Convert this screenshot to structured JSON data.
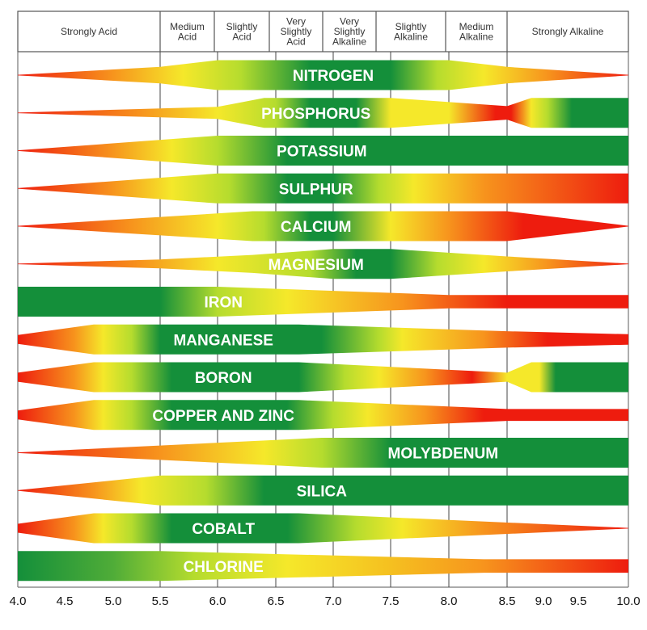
{
  "chart_data": {
    "type": "area",
    "title": "",
    "xlabel": "",
    "ylabel": "",
    "xlim": [
      4.0,
      10.0
    ],
    "x_ticks": [
      "4.0",
      "4.5",
      "5.0",
      "5.5",
      "6.0",
      "6.5",
      "7.0",
      "7.5",
      "8.0",
      "8.5",
      "9.0",
      "9.5",
      "10.0"
    ],
    "x_tick_values": [
      4.0,
      4.5,
      5.0,
      5.5,
      6.0,
      6.5,
      7.0,
      7.5,
      8.0,
      8.5,
      9.0,
      9.5,
      10.0
    ],
    "gridlines_at": [
      5.5,
      6.0,
      6.5,
      7.0,
      7.5,
      8.0,
      8.5
    ],
    "header_categories": [
      {
        "label": "Strongly Acid",
        "from": 4.0,
        "to": 5.5
      },
      {
        "label": "Medium Acid",
        "from": 5.5,
        "to": 6.0
      },
      {
        "label": "Slightly Acid",
        "from": 6.0,
        "to": 6.5
      },
      {
        "label": "Very Slightly Acid",
        "from": 6.5,
        "to": 7.0
      },
      {
        "label": "Very Slightly Alkaline",
        "from": 7.0,
        "to": 7.5
      },
      {
        "label": "Slightly Alkaline",
        "from": 7.5,
        "to": 8.0
      },
      {
        "label": "Medium Alkaline",
        "from": 8.0,
        "to": 8.5
      },
      {
        "label": "Strongly Alkaline",
        "from": 8.5,
        "to": 10.0
      }
    ],
    "colors": {
      "low": "#ee1c0e",
      "orange": "#f7941d",
      "yellow": "#f5e82a",
      "lime": "#b5dc2e",
      "high": "#148f3a"
    },
    "legend": "availability shown by band width and color (red = low, green = high)",
    "series": [
      {
        "name": "NITROGEN",
        "label_at": 7.0,
        "width": [
          [
            4.0,
            0.0
          ],
          [
            5.5,
            0.55
          ],
          [
            6.0,
            1.0
          ],
          [
            8.0,
            1.0
          ],
          [
            8.5,
            0.55
          ],
          [
            10.0,
            0.0
          ]
        ],
        "color": [
          [
            4.0,
            "#ee1c0e"
          ],
          [
            5.0,
            "#f7941d"
          ],
          [
            5.7,
            "#f5e82a"
          ],
          [
            6.2,
            "#b5dc2e"
          ],
          [
            6.8,
            "#148f3a"
          ],
          [
            7.5,
            "#148f3a"
          ],
          [
            7.9,
            "#b5dc2e"
          ],
          [
            8.3,
            "#f5e82a"
          ],
          [
            9.0,
            "#f7941d"
          ],
          [
            10.0,
            "#ee1c0e"
          ]
        ]
      },
      {
        "name": "PHOSPHORUS",
        "label_at": 6.85,
        "width": [
          [
            4.0,
            0.0
          ],
          [
            5.5,
            0.3
          ],
          [
            6.0,
            0.4
          ],
          [
            6.4,
            1.0
          ],
          [
            7.5,
            1.0
          ],
          [
            8.5,
            0.45
          ],
          [
            8.8,
            1.0
          ],
          [
            10.0,
            1.0
          ]
        ],
        "color": [
          [
            4.0,
            "#ee1c0e"
          ],
          [
            5.3,
            "#f7941d"
          ],
          [
            6.0,
            "#f5e82a"
          ],
          [
            6.5,
            "#b5dc2e"
          ],
          [
            6.8,
            "#148f3a"
          ],
          [
            7.2,
            "#148f3a"
          ],
          [
            7.5,
            "#f5e82a"
          ],
          [
            8.0,
            "#f5e82a"
          ],
          [
            8.4,
            "#ee1c0e"
          ],
          [
            8.55,
            "#ee1c0e"
          ],
          [
            8.8,
            "#f5e82a"
          ],
          [
            9.0,
            "#b5dc2e"
          ],
          [
            9.3,
            "#148f3a"
          ],
          [
            10.0,
            "#148f3a"
          ]
        ]
      },
      {
        "name": "POTASSIUM",
        "label_at": 6.9,
        "width": [
          [
            4.0,
            0.0
          ],
          [
            6.0,
            1.0
          ],
          [
            10.0,
            1.0
          ]
        ],
        "color": [
          [
            4.0,
            "#ee1c0e"
          ],
          [
            5.0,
            "#f7941d"
          ],
          [
            5.6,
            "#f5e82a"
          ],
          [
            6.0,
            "#b5dc2e"
          ],
          [
            6.6,
            "#148f3a"
          ],
          [
            10.0,
            "#148f3a"
          ]
        ]
      },
      {
        "name": "SULPHUR",
        "label_at": 6.85,
        "width": [
          [
            4.0,
            0.0
          ],
          [
            6.0,
            1.0
          ],
          [
            10.0,
            1.0
          ]
        ],
        "color": [
          [
            4.0,
            "#ee1c0e"
          ],
          [
            5.0,
            "#f7941d"
          ],
          [
            5.6,
            "#f5e82a"
          ],
          [
            6.1,
            "#b5dc2e"
          ],
          [
            6.6,
            "#148f3a"
          ],
          [
            7.0,
            "#148f3a"
          ],
          [
            7.4,
            "#b5dc2e"
          ],
          [
            7.7,
            "#f5e82a"
          ],
          [
            8.3,
            "#f7941d"
          ],
          [
            10.0,
            "#ee1c0e"
          ]
        ]
      },
      {
        "name": "CALCIUM",
        "label_at": 6.85,
        "width": [
          [
            4.0,
            0.0
          ],
          [
            6.3,
            1.0
          ],
          [
            8.5,
            1.0
          ],
          [
            10.0,
            0.0
          ]
        ],
        "color": [
          [
            4.0,
            "#ee1c0e"
          ],
          [
            5.2,
            "#f7941d"
          ],
          [
            6.0,
            "#f5e82a"
          ],
          [
            6.4,
            "#b5dc2e"
          ],
          [
            6.8,
            "#148f3a"
          ],
          [
            7.0,
            "#148f3a"
          ],
          [
            7.5,
            "#f5e82a"
          ],
          [
            8.0,
            "#f7941d"
          ],
          [
            8.7,
            "#ee1c0e"
          ],
          [
            10.0,
            "#ee1c0e"
          ]
        ]
      },
      {
        "name": "MAGNESIUM",
        "label_at": 6.85,
        "width": [
          [
            4.0,
            0.0
          ],
          [
            5.5,
            0.3
          ],
          [
            6.3,
            0.6
          ],
          [
            7.0,
            1.0
          ],
          [
            7.5,
            1.0
          ],
          [
            8.5,
            0.5
          ],
          [
            10.0,
            0.0
          ]
        ],
        "color": [
          [
            4.0,
            "#ee1c0e"
          ],
          [
            5.3,
            "#f7941d"
          ],
          [
            6.0,
            "#f5e82a"
          ],
          [
            6.8,
            "#b5dc2e"
          ],
          [
            7.2,
            "#148f3a"
          ],
          [
            7.5,
            "#148f3a"
          ],
          [
            7.9,
            "#b5dc2e"
          ],
          [
            8.3,
            "#f5e82a"
          ],
          [
            9.0,
            "#f7941d"
          ],
          [
            10.0,
            "#ee1c0e"
          ]
        ]
      },
      {
        "name": "IRON",
        "label_at": 6.05,
        "width": [
          [
            4.0,
            1.0
          ],
          [
            6.0,
            1.0
          ],
          [
            8.0,
            0.45
          ],
          [
            10.0,
            0.45
          ]
        ],
        "color": [
          [
            4.0,
            "#148f3a"
          ],
          [
            5.5,
            "#148f3a"
          ],
          [
            6.0,
            "#b5dc2e"
          ],
          [
            6.6,
            "#f5e82a"
          ],
          [
            7.6,
            "#f7941d"
          ],
          [
            8.5,
            "#ee1c0e"
          ],
          [
            10.0,
            "#ee1c0e"
          ]
        ]
      },
      {
        "name": "MANGANESE",
        "label_at": 6.05,
        "width": [
          [
            4.0,
            0.3
          ],
          [
            4.8,
            1.0
          ],
          [
            6.7,
            1.0
          ],
          [
            8.5,
            0.55
          ],
          [
            10.0,
            0.35
          ]
        ],
        "color": [
          [
            4.0,
            "#ee1c0e"
          ],
          [
            4.6,
            "#f7941d"
          ],
          [
            4.9,
            "#f5e82a"
          ],
          [
            5.2,
            "#b5dc2e"
          ],
          [
            5.5,
            "#148f3a"
          ],
          [
            6.9,
            "#148f3a"
          ],
          [
            7.4,
            "#b5dc2e"
          ],
          [
            7.6,
            "#f5e82a"
          ],
          [
            8.3,
            "#f7941d"
          ],
          [
            9.0,
            "#ee1c0e"
          ],
          [
            10.0,
            "#ee1c0e"
          ]
        ]
      },
      {
        "name": "BORON",
        "label_at": 6.05,
        "width": [
          [
            4.0,
            0.3
          ],
          [
            4.8,
            1.0
          ],
          [
            6.7,
            1.0
          ],
          [
            8.5,
            0.3
          ],
          [
            8.8,
            1.0
          ],
          [
            10.0,
            1.0
          ]
        ],
        "color": [
          [
            4.0,
            "#ee1c0e"
          ],
          [
            4.6,
            "#f7941d"
          ],
          [
            4.9,
            "#f5e82a"
          ],
          [
            5.2,
            "#b5dc2e"
          ],
          [
            5.6,
            "#148f3a"
          ],
          [
            6.7,
            "#148f3a"
          ],
          [
            7.1,
            "#b5dc2e"
          ],
          [
            7.4,
            "#f5e82a"
          ],
          [
            7.8,
            "#f7941d"
          ],
          [
            8.2,
            "#ee1c0e"
          ],
          [
            8.5,
            "#f5e82a"
          ],
          [
            8.9,
            "#f5e82a"
          ],
          [
            9.1,
            "#148f3a"
          ],
          [
            10.0,
            "#148f3a"
          ]
        ]
      },
      {
        "name": "COPPER AND ZINC",
        "label_at": 6.05,
        "width": [
          [
            4.0,
            0.3
          ],
          [
            4.8,
            1.0
          ],
          [
            6.7,
            1.0
          ],
          [
            8.5,
            0.4
          ],
          [
            10.0,
            0.4
          ]
        ],
        "color": [
          [
            4.0,
            "#ee1c0e"
          ],
          [
            4.6,
            "#f7941d"
          ],
          [
            4.9,
            "#f5e82a"
          ],
          [
            5.2,
            "#b5dc2e"
          ],
          [
            5.6,
            "#148f3a"
          ],
          [
            6.6,
            "#148f3a"
          ],
          [
            7.0,
            "#b5dc2e"
          ],
          [
            7.3,
            "#f5e82a"
          ],
          [
            7.8,
            "#f7941d"
          ],
          [
            8.3,
            "#ee1c0e"
          ],
          [
            10.0,
            "#ee1c0e"
          ]
        ]
      },
      {
        "name": "MOLYBDENUM",
        "label_at": 7.95,
        "width": [
          [
            4.0,
            0.0
          ],
          [
            6.9,
            1.0
          ],
          [
            10.0,
            1.0
          ]
        ],
        "color": [
          [
            4.0,
            "#ee1c0e"
          ],
          [
            5.5,
            "#f7941d"
          ],
          [
            6.4,
            "#f5e82a"
          ],
          [
            6.9,
            "#b5dc2e"
          ],
          [
            7.5,
            "#148f3a"
          ],
          [
            10.0,
            "#148f3a"
          ]
        ]
      },
      {
        "name": "SILICA",
        "label_at": 6.9,
        "width": [
          [
            4.0,
            0.0
          ],
          [
            5.5,
            1.0
          ],
          [
            10.0,
            1.0
          ]
        ],
        "color": [
          [
            4.0,
            "#ee1c0e"
          ],
          [
            4.8,
            "#f7941d"
          ],
          [
            5.3,
            "#f5e82a"
          ],
          [
            5.9,
            "#b5dc2e"
          ],
          [
            6.4,
            "#148f3a"
          ],
          [
            10.0,
            "#148f3a"
          ]
        ]
      },
      {
        "name": "COBALT",
        "label_at": 6.05,
        "width": [
          [
            4.0,
            0.3
          ],
          [
            4.8,
            1.0
          ],
          [
            6.7,
            1.0
          ],
          [
            10.0,
            0.0
          ]
        ],
        "color": [
          [
            4.0,
            "#ee1c0e"
          ],
          [
            4.6,
            "#f7941d"
          ],
          [
            4.9,
            "#f5e82a"
          ],
          [
            5.2,
            "#b5dc2e"
          ],
          [
            5.6,
            "#148f3a"
          ],
          [
            6.6,
            "#148f3a"
          ],
          [
            7.2,
            "#b5dc2e"
          ],
          [
            7.6,
            "#f5e82a"
          ],
          [
            8.3,
            "#f7941d"
          ],
          [
            10.0,
            "#ee1c0e"
          ]
        ]
      },
      {
        "name": "CHLORINE",
        "label_at": 6.05,
        "width": [
          [
            4.0,
            1.0
          ],
          [
            5.5,
            1.0
          ],
          [
            6.0,
            0.9
          ],
          [
            8.3,
            0.45
          ],
          [
            10.0,
            0.45
          ]
        ],
        "color": [
          [
            4.0,
            "#148f3a"
          ],
          [
            5.0,
            "#4fac38"
          ],
          [
            5.8,
            "#b5dc2e"
          ],
          [
            6.6,
            "#f5e82a"
          ],
          [
            7.5,
            "#f5c020"
          ],
          [
            8.3,
            "#f7941d"
          ],
          [
            10.0,
            "#ee1c0e"
          ]
        ]
      }
    ]
  }
}
